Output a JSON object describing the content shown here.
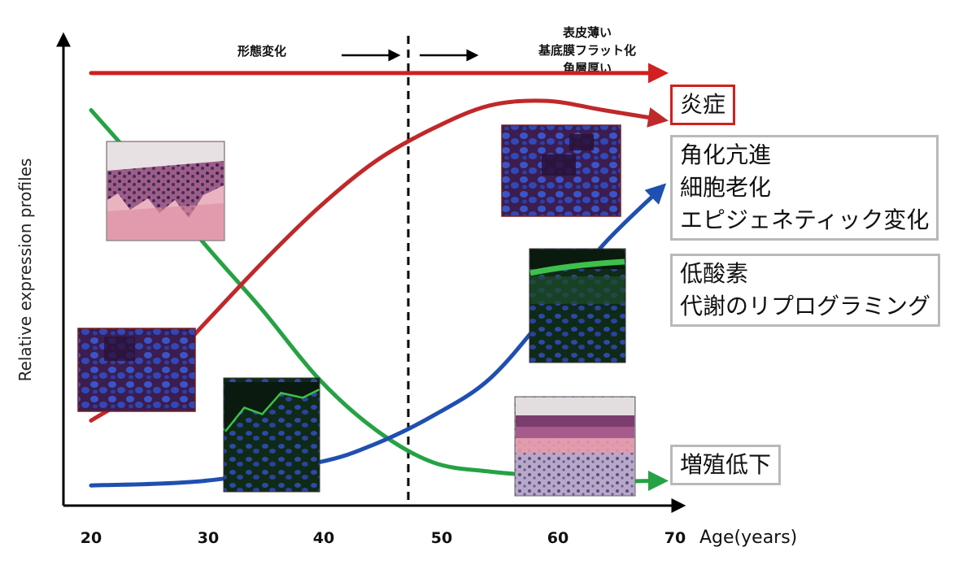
{
  "chart_data": {
    "type": "line",
    "ylabel": "Relative expression profiles",
    "xlabel": "Age(years)",
    "x_ticks": [
      "20",
      "30",
      "40",
      "50",
      "60",
      "70"
    ],
    "xlim": [
      20,
      70
    ],
    "divider_age": 47,
    "top_annotations": {
      "left": "形態変化",
      "right": [
        "表皮薄い",
        "基底膜フラット化",
        "角層厚い"
      ]
    },
    "series": [
      {
        "key": "inflammation",
        "color": "#d21f1f",
        "points": [
          [
            20,
            0.93
          ],
          [
            70,
            0.93
          ]
        ]
      },
      {
        "key": "senescence",
        "color": "#c0282a",
        "points": [
          [
            20,
            0.18
          ],
          [
            25,
            0.26
          ],
          [
            30,
            0.39
          ],
          [
            35,
            0.52
          ],
          [
            40,
            0.64
          ],
          [
            45,
            0.74
          ],
          [
            50,
            0.81
          ],
          [
            55,
            0.86
          ],
          [
            60,
            0.87
          ],
          [
            65,
            0.85
          ],
          [
            70,
            0.83
          ]
        ]
      },
      {
        "key": "hypoxia",
        "color": "#1f4fb0",
        "points": [
          [
            20,
            0.04
          ],
          [
            30,
            0.05
          ],
          [
            40,
            0.09
          ],
          [
            45,
            0.13
          ],
          [
            50,
            0.19
          ],
          [
            55,
            0.27
          ],
          [
            60,
            0.41
          ],
          [
            65,
            0.56
          ],
          [
            70,
            0.68
          ]
        ]
      },
      {
        "key": "proliferation",
        "color": "#25a244",
        "points": [
          [
            20,
            0.85
          ],
          [
            25,
            0.71
          ],
          [
            30,
            0.56
          ],
          [
            35,
            0.42
          ],
          [
            40,
            0.27
          ],
          [
            45,
            0.16
          ],
          [
            50,
            0.09
          ],
          [
            55,
            0.07
          ],
          [
            60,
            0.06
          ],
          [
            65,
            0.05
          ],
          [
            70,
            0.05
          ]
        ]
      }
    ]
  },
  "labels": {
    "inflammation": [
      "炎症"
    ],
    "senescence": [
      "角化亢進",
      "細胞老化",
      "エピジェネティック変化"
    ],
    "hypoxia": [
      "低酸素",
      "代謝のリプログラミング"
    ],
    "proliferation": [
      "増殖低下"
    ]
  },
  "thumbnails": [
    {
      "name": "he-stain-young",
      "type": "he"
    },
    {
      "name": "nuclei-blue-young",
      "type": "nuclei"
    },
    {
      "name": "fluorescence-green-young",
      "type": "green"
    },
    {
      "name": "nuclei-blue-old",
      "type": "nuclei"
    },
    {
      "name": "fluorescence-green-old",
      "type": "green"
    },
    {
      "name": "he-stain-old",
      "type": "he"
    }
  ]
}
